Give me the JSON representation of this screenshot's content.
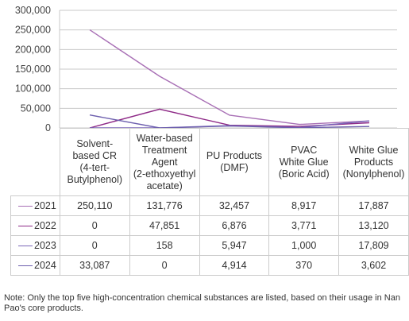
{
  "chart_data": {
    "type": "line",
    "categories": [
      "Solvent-\nbased CR\n(4-tert-\nButylphenol)",
      "Water-based\nTreatment\nAgent\n(2-ethoxyethyl\nacetate)",
      "PU Products\n(DMF)",
      "PVAC\nWhite Glue\n(Boric Acid)",
      "White Glue\nProducts\n(Nonylphenol)"
    ],
    "series": [
      {
        "name": "2021",
        "color": "#a86fb5",
        "values": [
          250110,
          131776,
          32457,
          8917,
          17887
        ],
        "labels": [
          "250,110",
          "131,776",
          "32,457",
          "8,917",
          "17,887"
        ]
      },
      {
        "name": "2022",
        "color": "#8e2a87",
        "values": [
          0,
          47851,
          6876,
          3771,
          13120
        ],
        "labels": [
          "0",
          "47,851",
          "6,876",
          "3,771",
          "13,120"
        ]
      },
      {
        "name": "2023",
        "color": "#7b66b8",
        "values": [
          0,
          158,
          5947,
          1000,
          17809
        ],
        "labels": [
          "0",
          "158",
          "5,947",
          "1,000",
          "17,809"
        ]
      },
      {
        "name": "2024",
        "color": "#6d5fae",
        "values": [
          33087,
          0,
          4914,
          370,
          3602
        ],
        "labels": [
          "33,087",
          "0",
          "4,914",
          "370",
          "3,602"
        ]
      }
    ],
    "ylim": [
      0,
      300000
    ],
    "yticks": [
      0,
      50000,
      100000,
      150000,
      200000,
      250000,
      300000
    ],
    "ytick_labels": [
      "0",
      "50,000",
      "100,000",
      "150,000",
      "200,000",
      "250,000",
      "300,000"
    ],
    "grid": true,
    "legend": "in data table"
  },
  "note": "Note: Only the top five high-concentration chemical substances are listed, based on their usage in Nan Pao's core products."
}
